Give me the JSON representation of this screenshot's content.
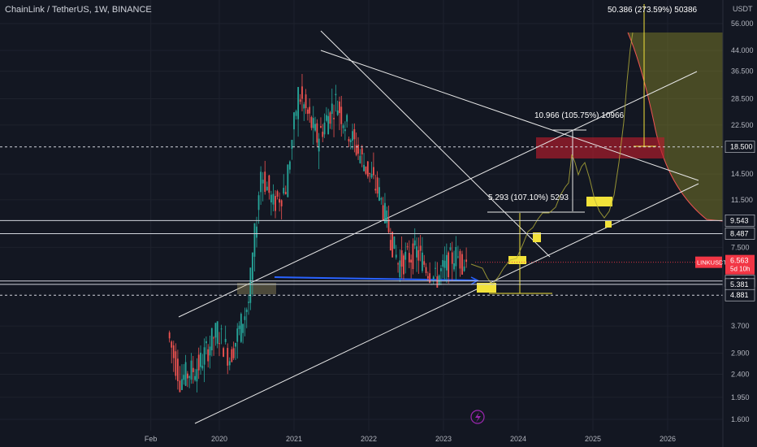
{
  "header": {
    "title": "ChainLink / TetherUS, 1W, BINANCE"
  },
  "price_scale": {
    "currency": "USDT"
  },
  "chart_data": {
    "type": "candlestick",
    "symbol": "LINKUSDT",
    "timeframe": "1W",
    "y_scale": "log",
    "y_ticks": [
      {
        "value": 56.0,
        "label": "56.000"
      },
      {
        "value": 44.0,
        "label": "44.000"
      },
      {
        "value": 36.5,
        "label": "36.500"
      },
      {
        "value": 28.5,
        "label": "28.500"
      },
      {
        "value": 22.5,
        "label": "22.500"
      },
      {
        "value": 14.5,
        "label": "14.500"
      },
      {
        "value": 11.5,
        "label": "11.500"
      },
      {
        "value": 7.5,
        "label": "7.500"
      },
      {
        "value": 3.7,
        "label": "3.700"
      },
      {
        "value": 2.9,
        "label": "2.900"
      },
      {
        "value": 2.4,
        "label": "2.400"
      },
      {
        "value": 1.95,
        "label": "1.950"
      },
      {
        "value": 1.6,
        "label": "1.600"
      }
    ],
    "x_ticks": [
      {
        "date": "2019-02",
        "label": "Feb"
      },
      {
        "date": "2020-01",
        "label": "2020"
      },
      {
        "date": "2021-01",
        "label": "2021"
      },
      {
        "date": "2022-01",
        "label": "2022"
      },
      {
        "date": "2023-01",
        "label": "2023"
      },
      {
        "date": "2024-01",
        "label": "2024"
      },
      {
        "date": "2025-01",
        "label": "2025"
      },
      {
        "date": "2026-01",
        "label": "2026"
      }
    ],
    "horizontal_levels": [
      {
        "value": 18.5,
        "label": "18.500",
        "style": "dashed"
      },
      {
        "value": 9.543,
        "label": "9.543",
        "style": "solid"
      },
      {
        "value": 8.487,
        "label": "8.487",
        "style": "solid"
      },
      {
        "value": 5.546,
        "label": "5.546",
        "style": "solid"
      },
      {
        "value": 5.381,
        "label": "5.381",
        "style": "solid"
      },
      {
        "value": 4.881,
        "label": "4.881",
        "style": "dashed"
      }
    ],
    "current_price": {
      "value": 6.563,
      "label": "6.563",
      "ticker": "LINKUSDT",
      "countdown": "5d 10h",
      "color": "#f23645"
    },
    "annotations": [
      {
        "text": "50.386 (273.59%) 50386"
      },
      {
        "text": "10.966 (105.75%) 10966"
      },
      {
        "text": "5.293 (107.10%) 5293"
      }
    ],
    "colors": {
      "up": "#26a69a",
      "down": "#ef5350",
      "background": "#131722",
      "projection": "#b6b23a",
      "resistance_zone": "#b71c2c",
      "support_box": "#f2e23a",
      "trend_line": "#e8e8e8",
      "blue_line": "#2962ff"
    },
    "ohlc_weekly_approx": [
      {
        "x": "2019-05",
        "o": 2.0,
        "h": 4.0,
        "l": 1.6,
        "c": 3.5
      },
      {
        "x": "2019-07",
        "o": 3.5,
        "h": 4.0,
        "l": 2.2,
        "c": 2.3
      },
      {
        "x": "2019-10",
        "o": 2.3,
        "h": 3.2,
        "l": 2.0,
        "c": 2.6
      },
      {
        "x": "2020-01",
        "o": 2.0,
        "h": 3.8,
        "l": 1.6,
        "c": 3.6
      },
      {
        "x": "2020-03",
        "o": 3.6,
        "h": 4.2,
        "l": 1.7,
        "c": 2.8
      },
      {
        "x": "2020-06",
        "o": 2.8,
        "h": 5.0,
        "l": 2.6,
        "c": 4.6
      },
      {
        "x": "2020-08",
        "o": 4.6,
        "h": 19.5,
        "l": 4.5,
        "c": 15.0
      },
      {
        "x": "2020-10",
        "o": 15.0,
        "h": 15.5,
        "l": 9.0,
        "c": 11.0
      },
      {
        "x": "2020-12",
        "o": 11.0,
        "h": 14.0,
        "l": 10.0,
        "c": 13.0
      },
      {
        "x": "2021-02",
        "o": 13.0,
        "h": 36.0,
        "l": 13.0,
        "c": 30.0
      },
      {
        "x": "2021-05",
        "o": 30.0,
        "h": 52.0,
        "l": 15.0,
        "c": 20.0
      },
      {
        "x": "2021-08",
        "o": 20.0,
        "h": 35.0,
        "l": 15.0,
        "c": 28.0
      },
      {
        "x": "2021-11",
        "o": 28.0,
        "h": 38.0,
        "l": 17.0,
        "c": 19.0
      },
      {
        "x": "2022-03",
        "o": 19.0,
        "h": 18.0,
        "l": 11.0,
        "c": 12.0
      },
      {
        "x": "2022-06",
        "o": 12.0,
        "h": 12.0,
        "l": 5.5,
        "c": 6.5
      },
      {
        "x": "2022-09",
        "o": 6.5,
        "h": 9.5,
        "l": 5.8,
        "c": 7.2
      },
      {
        "x": "2022-12",
        "o": 7.2,
        "h": 8.0,
        "l": 5.3,
        "c": 5.6
      },
      {
        "x": "2023-03",
        "o": 5.6,
        "h": 8.3,
        "l": 5.5,
        "c": 7.0
      },
      {
        "x": "2023-05",
        "o": 7.0,
        "h": 7.6,
        "l": 6.3,
        "c": 6.56
      }
    ]
  }
}
